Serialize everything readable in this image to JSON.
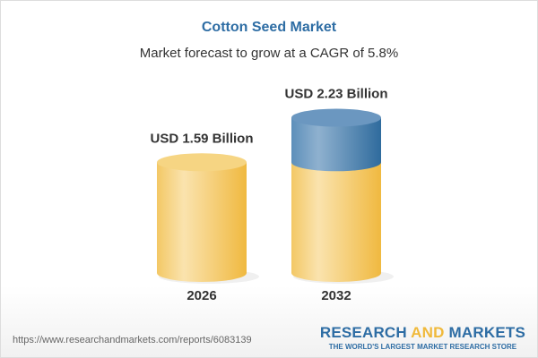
{
  "chart_data": {
    "type": "bar",
    "title": "Cotton Seed Market",
    "subtitle": "Market forecast to grow at a CAGR of 5.8%",
    "categories": [
      "2026",
      "2032"
    ],
    "values": [
      1.59,
      2.23
    ],
    "data_labels": [
      "USD 1.59 Billion",
      "USD 2.23 Billion"
    ],
    "colors": {
      "base": "#f3c762",
      "growth": "#4f86b3"
    }
  },
  "footer": {
    "url": "https://www.researchandmarkets.com/reports/6083139",
    "logo_a": "RESEARCH ",
    "logo_b": "AND",
    "logo_c": " MARKETS",
    "tagline": "THE WORLD'S LARGEST MARKET RESEARCH STORE"
  }
}
